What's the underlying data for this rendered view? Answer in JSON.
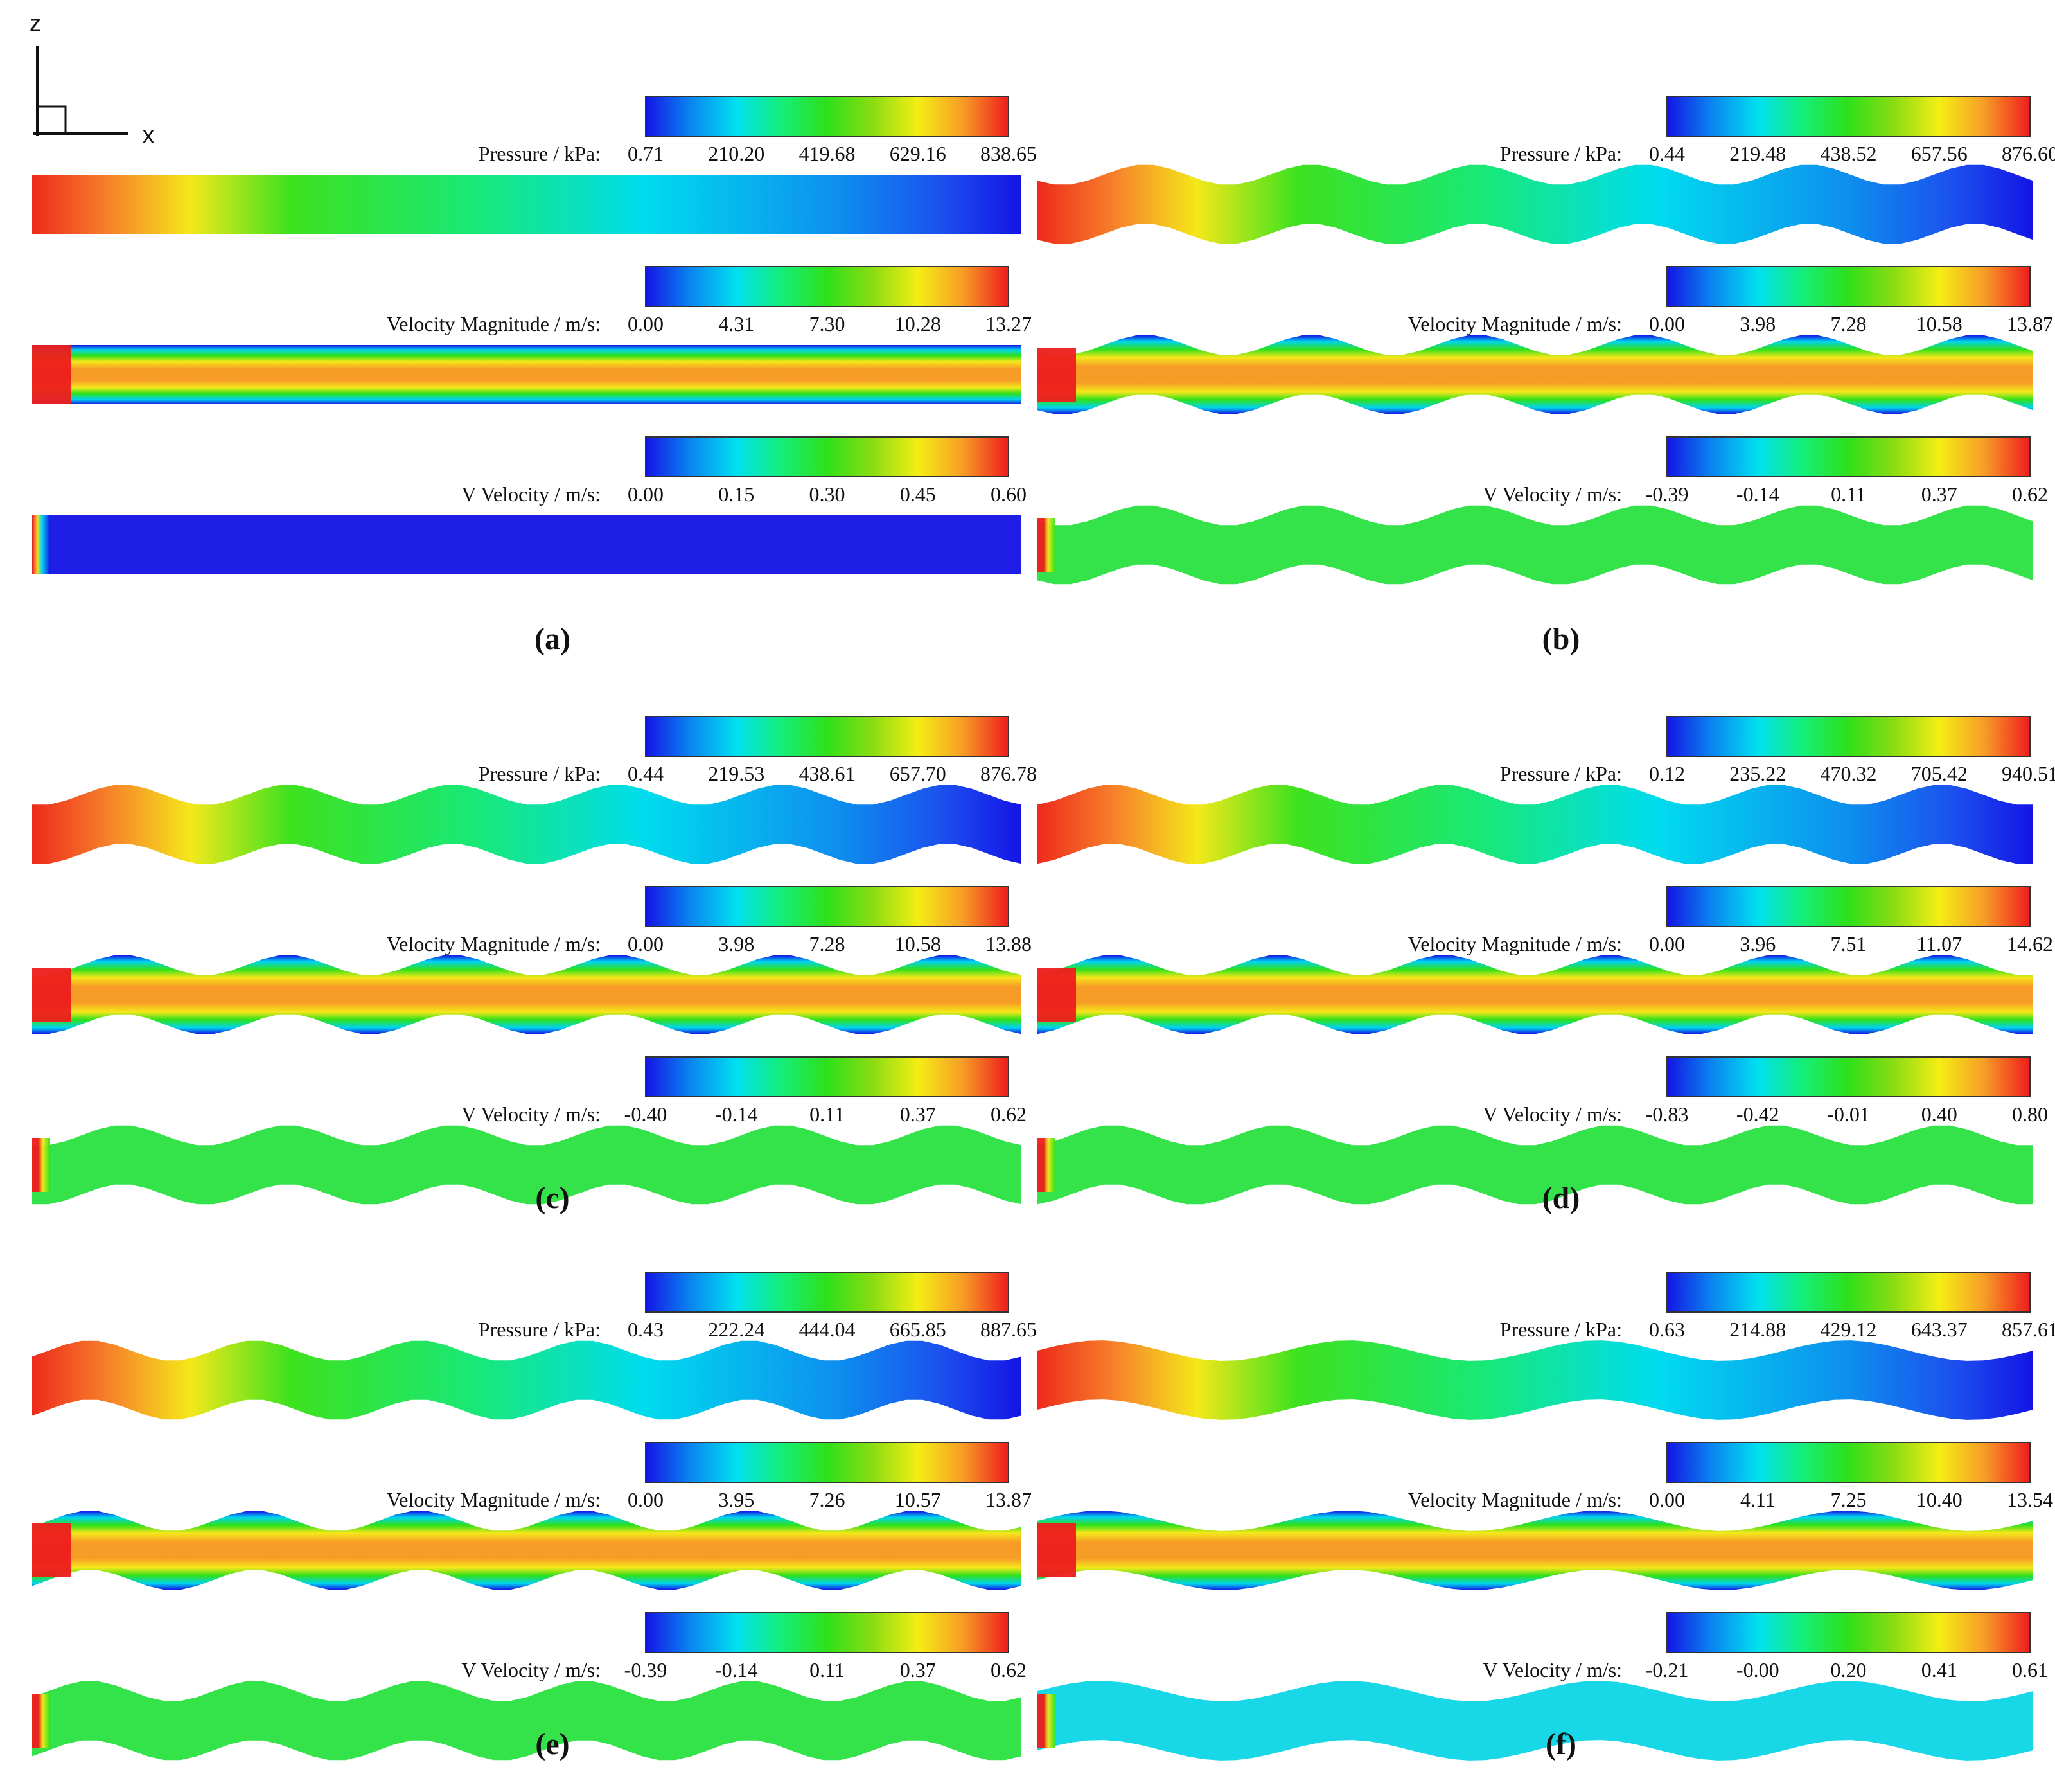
{
  "axes": {
    "vertical": "z",
    "horizontal": "x"
  },
  "colormap": [
    "#1414e6",
    "#0a86f0",
    "#00e0f0",
    "#14ee78",
    "#2ee01a",
    "#8adc12",
    "#f4ee14",
    "#f79c26",
    "#ee1c1c"
  ],
  "panels": [
    {
      "label": "(a)",
      "pressure": {
        "title": "Pressure / kPa:",
        "ticks": [
          "0.71",
          "210.20",
          "419.68",
          "629.16",
          "838.65"
        ]
      },
      "velocity_magnitude": {
        "title": "Velocity Magnitude / m/s:",
        "ticks": [
          "0.00",
          "4.31",
          "7.30",
          "10.28",
          "13.27"
        ]
      },
      "v_velocity": {
        "title": "V Velocity / m/s:",
        "ticks": [
          "0.00",
          "0.15",
          "0.30",
          "0.45",
          "0.60"
        ]
      }
    },
    {
      "label": "(b)",
      "pressure": {
        "title": "Pressure / kPa:",
        "ticks": [
          "0.44",
          "219.48",
          "438.52",
          "657.56",
          "876.60"
        ]
      },
      "velocity_magnitude": {
        "title": "Velocity Magnitude / m/s:",
        "ticks": [
          "0.00",
          "3.98",
          "7.28",
          "10.58",
          "13.87"
        ]
      },
      "v_velocity": {
        "title": "V Velocity / m/s:",
        "ticks": [
          "-0.39",
          "-0.14",
          "0.11",
          "0.37",
          "0.62"
        ]
      }
    },
    {
      "label": "(c)",
      "pressure": {
        "title": "Pressure / kPa:",
        "ticks": [
          "0.44",
          "219.53",
          "438.61",
          "657.70",
          "876.78"
        ]
      },
      "velocity_magnitude": {
        "title": "Velocity Magnitude / m/s:",
        "ticks": [
          "0.00",
          "3.98",
          "7.28",
          "10.58",
          "13.88"
        ]
      },
      "v_velocity": {
        "title": "V Velocity / m/s:",
        "ticks": [
          "-0.40",
          "-0.14",
          "0.11",
          "0.37",
          "0.62"
        ]
      }
    },
    {
      "label": "(d)",
      "pressure": {
        "title": "Pressure / kPa:",
        "ticks": [
          "0.12",
          "235.22",
          "470.32",
          "705.42",
          "940.51"
        ]
      },
      "velocity_magnitude": {
        "title": "Velocity Magnitude / m/s:",
        "ticks": [
          "0.00",
          "3.96",
          "7.51",
          "11.07",
          "14.62"
        ]
      },
      "v_velocity": {
        "title": "V Velocity / m/s:",
        "ticks": [
          "-0.83",
          "-0.42",
          "-0.01",
          "0.40",
          "0.80"
        ]
      }
    },
    {
      "label": "(e)",
      "pressure": {
        "title": "Pressure / kPa:",
        "ticks": [
          "0.43",
          "222.24",
          "444.04",
          "665.85",
          "887.65"
        ]
      },
      "velocity_magnitude": {
        "title": "Velocity Magnitude / m/s:",
        "ticks": [
          "0.00",
          "3.95",
          "7.26",
          "10.57",
          "13.87"
        ]
      },
      "v_velocity": {
        "title": "V Velocity / m/s:",
        "ticks": [
          "-0.39",
          "-0.14",
          "0.11",
          "0.37",
          "0.62"
        ]
      }
    },
    {
      "label": "(f)",
      "pressure": {
        "title": "Pressure / kPa:",
        "ticks": [
          "0.63",
          "214.88",
          "429.12",
          "643.37",
          "857.61"
        ]
      },
      "velocity_magnitude": {
        "title": "Velocity Magnitude / m/s:",
        "ticks": [
          "0.00",
          "4.11",
          "7.25",
          "10.40",
          "13.54"
        ]
      },
      "v_velocity": {
        "title": "V Velocity / m/s:",
        "ticks": [
          "-0.21",
          "-0.00",
          "0.20",
          "0.41",
          "0.61"
        ]
      }
    }
  ]
}
